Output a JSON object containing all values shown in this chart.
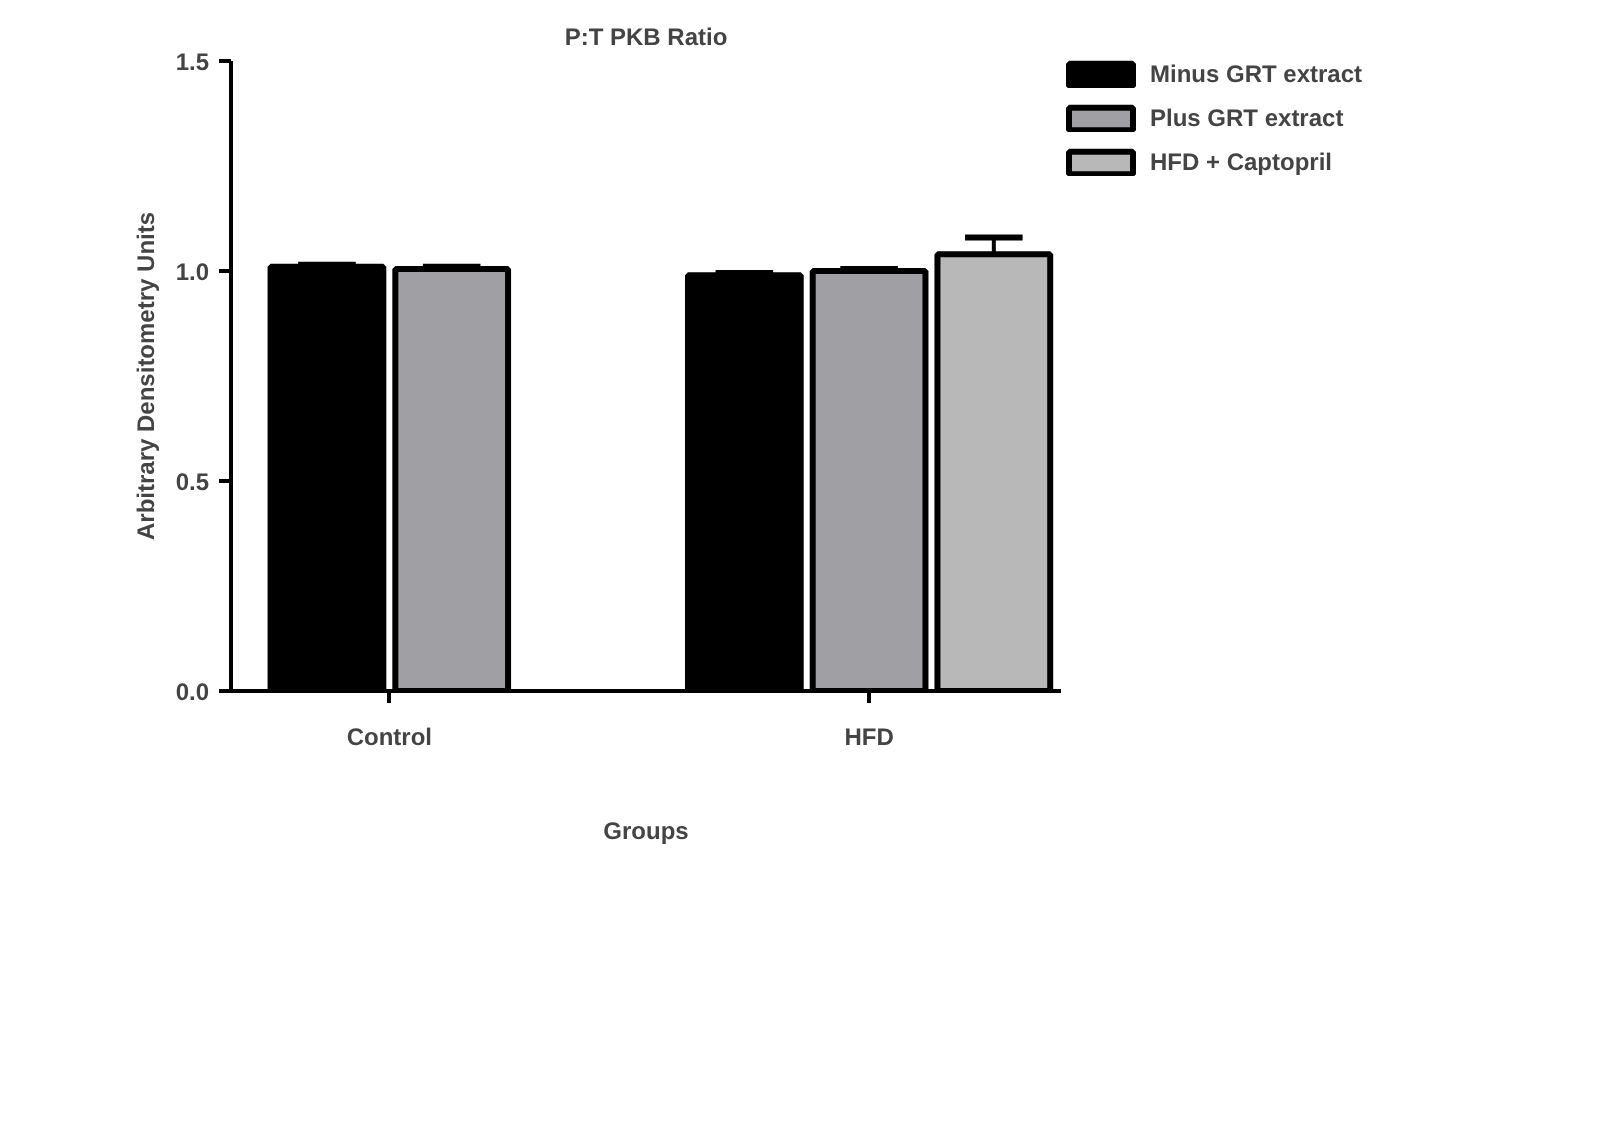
{
  "chart_data": {
    "type": "bar",
    "title": "P:T PKB Ratio",
    "xlabel": "Groups",
    "ylabel": "Arbitrary Densitometry Units",
    "categories": [
      "Control",
      "HFD"
    ],
    "series": [
      {
        "name": "Minus GRT extract",
        "color": "#000000",
        "values": [
          1.01,
          0.99
        ],
        "errors": [
          0.005,
          0.005
        ]
      },
      {
        "name": "Plus GRT extract",
        "color": "#a0a0a4",
        "values": [
          1.005,
          1.0
        ],
        "errors": [
          0.005,
          0.005
        ]
      },
      {
        "name": "HFD + Captopril",
        "color": "#b8b8b8",
        "values": [
          null,
          1.04
        ],
        "errors": [
          null,
          0.04
        ]
      }
    ],
    "ylim": [
      0,
      1.5
    ],
    "yticks": [
      {
        "value": 0,
        "label": "0.0"
      },
      0.5,
      {
        "value": 1,
        "label": "1.0"
      },
      1.5
    ],
    "grid": false,
    "legend": "right"
  }
}
